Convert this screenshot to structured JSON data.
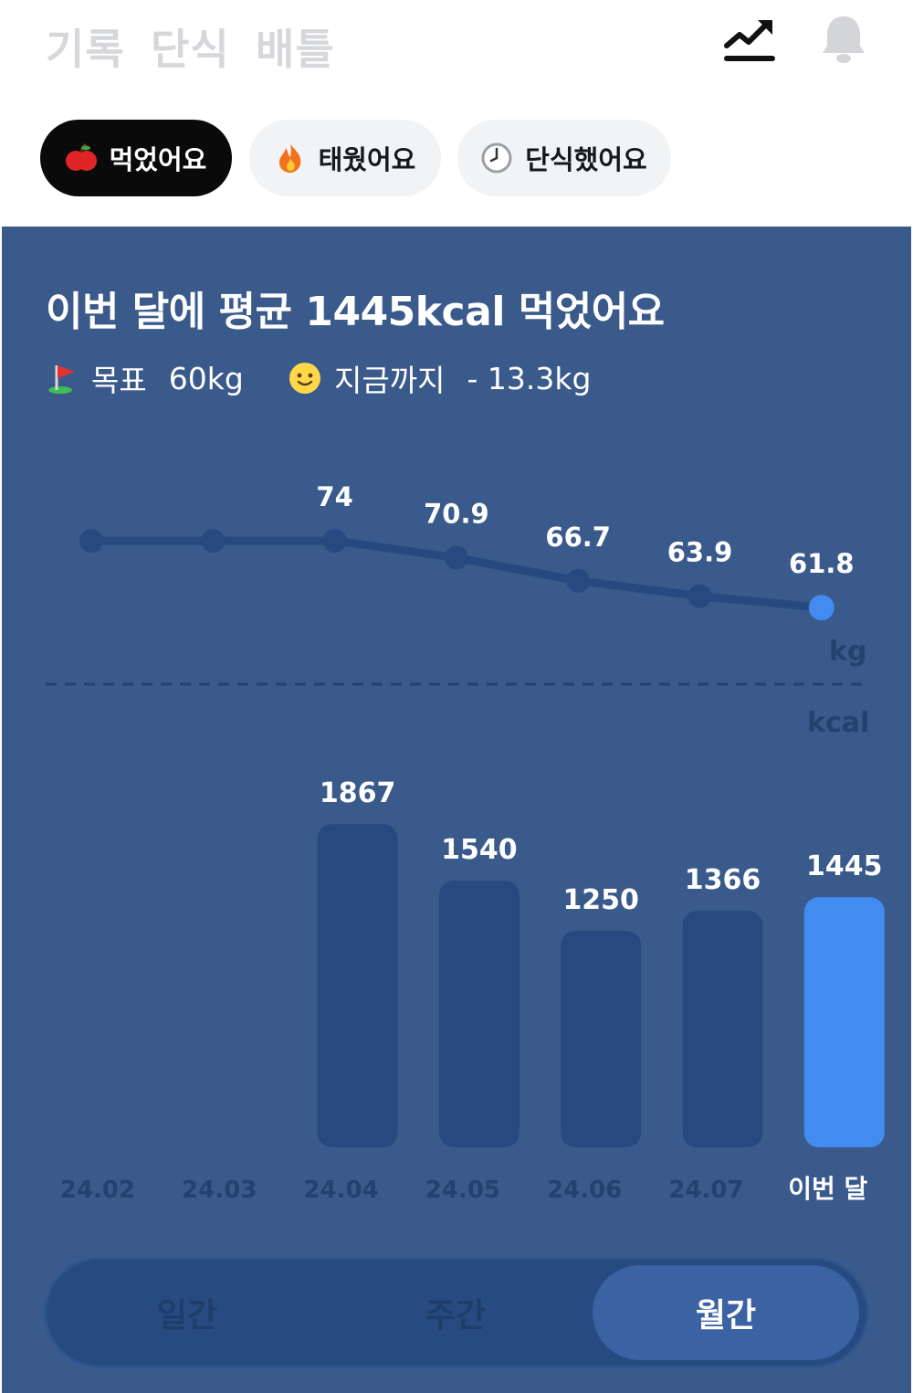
{
  "header": {
    "tabs": [
      "기록",
      "단식",
      "배틀"
    ],
    "icons": [
      "trend-icon",
      "bell-icon"
    ]
  },
  "chips": [
    {
      "label": "먹었어요",
      "icon": "apple-icon",
      "active": true
    },
    {
      "label": "태웠어요",
      "icon": "fire-icon",
      "active": false
    },
    {
      "label": "단식했어요",
      "icon": "clock-icon",
      "active": false
    }
  ],
  "summary": {
    "headline": "이번 달에 평균 1445kcal 먹었어요",
    "goal_label": "목표",
    "goal_value": "60kg",
    "progress_label": "지금까지",
    "progress_value": "- 13.3kg"
  },
  "chart_data": {
    "type": "bar+line",
    "categories": [
      "24.02",
      "24.03",
      "24.04",
      "24.05",
      "24.06",
      "24.07",
      "이번 달"
    ],
    "line_series": {
      "unit": "kg",
      "values": [
        null,
        null,
        74,
        70.9,
        66.7,
        63.9,
        61.8
      ],
      "labels": [
        "",
        "",
        "74",
        "70.9",
        "66.7",
        "63.9",
        "61.8"
      ]
    },
    "bar_series": {
      "unit": "kcal",
      "values": [
        null,
        null,
        1867,
        1540,
        1250,
        1366,
        1445
      ],
      "labels": [
        "",
        "",
        "1867",
        "1540",
        "1250",
        "1366",
        "1445"
      ]
    },
    "highlight_index": 6,
    "colors": {
      "bar": "#27497f",
      "bar_highlight": "#428bf0",
      "line": "#27497f",
      "point_highlight": "#428bf0"
    }
  },
  "segment": {
    "items": [
      "일간",
      "주간",
      "월간"
    ],
    "active_index": 2
  }
}
